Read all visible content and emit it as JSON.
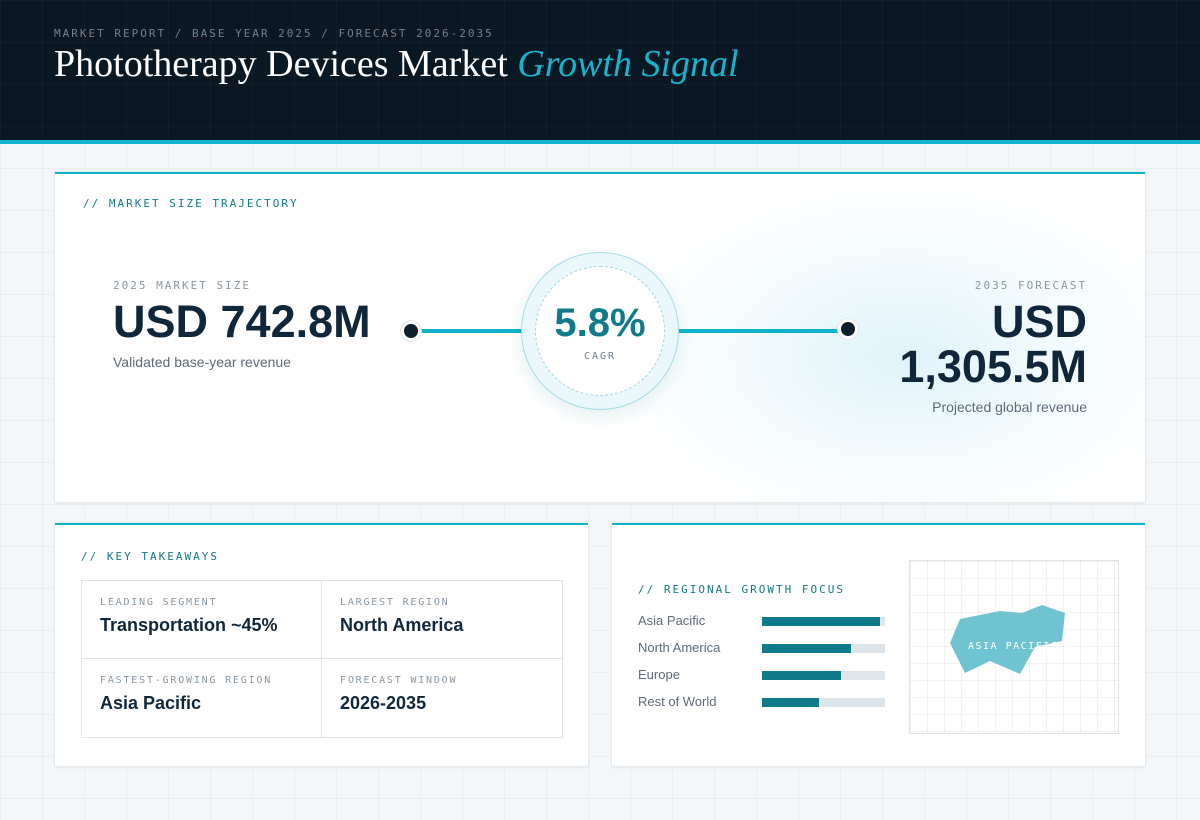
{
  "header": {
    "breadcrumb": "MARKET REPORT / BASE YEAR 2025 / FORECAST 2026-2035",
    "title_main": "Phototherapy Devices Market",
    "title_accent": "Growth Signal"
  },
  "trajectory": {
    "section_label": "// MARKET SIZE TRAJECTORY",
    "start": {
      "label": "2025 MARKET SIZE",
      "value": "USD 742.8M",
      "caption": "Validated base-year revenue"
    },
    "cagr": {
      "value": "5.8%",
      "label": "CAGR"
    },
    "end": {
      "label": "2035 FORECAST",
      "value_line1": "USD",
      "value_line2": "1,305.5M",
      "caption": "Projected global revenue"
    }
  },
  "takeaways": {
    "section_label": "// KEY TAKEAWAYS",
    "items": [
      {
        "label": "LEADING SEGMENT",
        "value": "Transportation ~45%"
      },
      {
        "label": "LARGEST REGION",
        "value": "North America"
      },
      {
        "label": "FASTEST-GROWING REGION",
        "value": "Asia Pacific"
      },
      {
        "label": "FORECAST WINDOW",
        "value": "2026-2035"
      }
    ]
  },
  "regional": {
    "section_label": "// REGIONAL GROWTH FOCUS",
    "regions": [
      {
        "name": "Asia Pacific",
        "level": 0.96
      },
      {
        "name": "North America",
        "level": 0.72
      },
      {
        "name": "Europe",
        "level": 0.64
      },
      {
        "name": "Rest of World",
        "level": 0.46
      }
    ],
    "map_label": "ASIA PACIFIC",
    "map_color": "#70c4d2"
  }
}
